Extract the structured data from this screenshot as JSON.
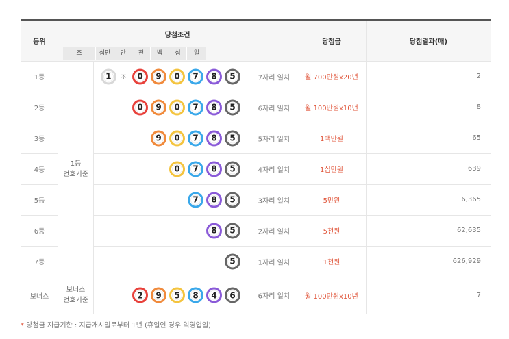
{
  "headers": {
    "rank": "등위",
    "condition": "당첨조건",
    "prize": "당첨금",
    "result": "당첨결과(매)"
  },
  "units": [
    "조",
    "십만",
    "만",
    "천",
    "백",
    "십",
    "일"
  ],
  "basis": {
    "first": "1등\n번호기준",
    "bonus": "보너스\n번호기준"
  },
  "colors": {
    "red": "#e8413b",
    "orange": "#f08a3c",
    "yellow": "#f4c43f",
    "blue": "#3aa8ea",
    "purple": "#8a5ad8",
    "gray": "#666666",
    "group": "#d8d8d8",
    "prize": "#e0553a"
  },
  "jo_label": "조",
  "rows": [
    {
      "rank": "1등",
      "group": "1",
      "balls": [
        "0",
        "9",
        "0",
        "7",
        "8",
        "5"
      ],
      "match": "7자리 일치",
      "prize": "월 700만원x20년",
      "count": "2"
    },
    {
      "rank": "2등",
      "balls": [
        "0",
        "9",
        "0",
        "7",
        "8",
        "5"
      ],
      "match": "6자리 일치",
      "prize": "월 100만원x10년",
      "count": "8"
    },
    {
      "rank": "3등",
      "balls": [
        "9",
        "0",
        "7",
        "8",
        "5"
      ],
      "match": "5자리 일치",
      "prize": "1백만원",
      "count": "65"
    },
    {
      "rank": "4등",
      "balls": [
        "0",
        "7",
        "8",
        "5"
      ],
      "match": "4자리 일치",
      "prize": "1십만원",
      "count": "639"
    },
    {
      "rank": "5등",
      "balls": [
        "7",
        "8",
        "5"
      ],
      "match": "3자리 일치",
      "prize": "5만원",
      "count": "6,365"
    },
    {
      "rank": "6등",
      "balls": [
        "8",
        "5"
      ],
      "match": "2자리 일치",
      "prize": "5천원",
      "count": "62,635"
    },
    {
      "rank": "7등",
      "balls": [
        "5"
      ],
      "match": "1자리 일치",
      "prize": "1천원",
      "count": "626,929"
    },
    {
      "rank": "보너스",
      "balls": [
        "2",
        "9",
        "5",
        "8",
        "4",
        "6"
      ],
      "match": "6자리 일치",
      "prize": "월 100만원x10년",
      "count": "7"
    }
  ],
  "note": {
    "mark": "*",
    "text": " 당첨금 지급기한 : 지급개시일로부터 1년 (휴일인 경우 익영업일)"
  }
}
